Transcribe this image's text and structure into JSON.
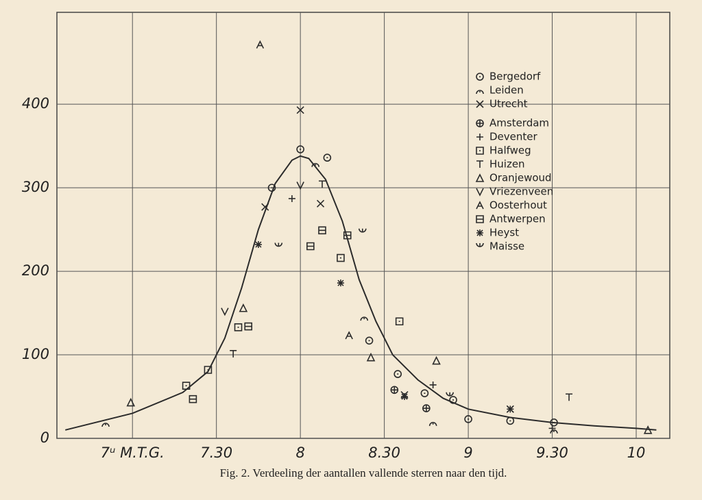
{
  "chart_data": {
    "type": "scatter",
    "caption": "Fig. 2. Verdeeling der aantallen vallende sterren naar den tijd.",
    "xlim": [
      6.55,
      10.2
    ],
    "ylim": [
      0,
      510
    ],
    "xticks": [
      {
        "value": 7,
        "label": "7ᵘ M.T.G."
      },
      {
        "value": 7.5,
        "label": "7.30"
      },
      8,
      {
        "value": 8.5,
        "label": "8.30"
      },
      9,
      {
        "value": 9.5,
        "label": "9.30"
      },
      10
    ],
    "yticks": [
      0,
      100,
      200,
      300,
      400
    ],
    "grid": true,
    "legend": "upper right",
    "color": "#2b2b2b",
    "curve": {
      "x": [
        6.6,
        7.0,
        7.3,
        7.45,
        7.55,
        7.65,
        7.75,
        7.85,
        7.95,
        8.0,
        8.05,
        8.15,
        8.25,
        8.35,
        8.45,
        8.55,
        8.7,
        8.85,
        9.0,
        9.25,
        9.5,
        9.75,
        10.0,
        10.12
      ],
      "values": [
        10,
        30,
        55,
        80,
        120,
        180,
        250,
        305,
        333,
        338,
        335,
        310,
        260,
        190,
        140,
        100,
        70,
        48,
        35,
        25,
        19,
        15,
        12,
        10
      ]
    },
    "series": [
      {
        "name": "Bergedorf",
        "marker": "circle-dot",
        "x": [
          7.83,
          8.0,
          8.16,
          8.41,
          8.58,
          8.74,
          8.91,
          9.0,
          9.25,
          9.51
        ],
        "values": [
          300,
          346,
          336,
          117,
          77,
          54,
          46,
          23,
          21,
          19
        ]
      },
      {
        "name": "Leiden",
        "marker": "arc",
        "x": [
          6.84,
          8.09,
          8.38,
          8.79,
          9.51
        ],
        "values": [
          18,
          329,
          145,
          19,
          10
        ]
      },
      {
        "name": "Utrecht",
        "marker": "cross",
        "x": [
          8.0,
          7.79,
          8.12,
          8.62,
          9.25
        ],
        "values": [
          393,
          277,
          281,
          52,
          35
        ]
      },
      {
        "name": "Amsterdam",
        "marker": "circle-plus",
        "x": [
          8.56,
          8.75
        ],
        "values": [
          58,
          36
        ]
      },
      {
        "name": "Deventer",
        "marker": "plus",
        "x": [
          7.95,
          9.5,
          8.79
        ],
        "values": [
          287,
          12,
          64
        ]
      },
      {
        "name": "Halfweg",
        "marker": "square",
        "x": [
          8.24,
          8.59,
          7.63,
          7.32,
          7.45
        ],
        "values": [
          216,
          140,
          133,
          63,
          82
        ]
      },
      {
        "name": "Huizen",
        "marker": "tee",
        "x": [
          9.6,
          7.6,
          8.13
        ],
        "values": [
          49,
          101,
          304
        ]
      },
      {
        "name": "Oranjewoud",
        "marker": "triangle",
        "x": [
          6.99,
          8.42,
          8.81,
          7.66,
          10.07
        ],
        "values": [
          43,
          97,
          93,
          156,
          10
        ]
      },
      {
        "name": "Vriezenveen",
        "marker": "vee",
        "x": [
          8.0,
          7.55
        ],
        "values": [
          303,
          152
        ]
      },
      {
        "name": "Oosterhout",
        "marker": "caret",
        "x": [
          7.76,
          8.29
        ],
        "values": [
          471,
          123
        ]
      },
      {
        "name": "Antwerpen",
        "marker": "box-line",
        "x": [
          8.06,
          8.13,
          8.28,
          7.69,
          7.36
        ],
        "values": [
          230,
          249,
          243,
          134,
          47
        ]
      },
      {
        "name": "Heyst",
        "marker": "star",
        "x": [
          7.75,
          8.24,
          8.62,
          9.25
        ],
        "values": [
          232,
          186,
          50,
          35
        ]
      },
      {
        "name": "Maisse",
        "marker": "cup",
        "x": [
          7.87,
          8.37,
          8.89
        ],
        "values": [
          230,
          247,
          51
        ]
      }
    ]
  }
}
